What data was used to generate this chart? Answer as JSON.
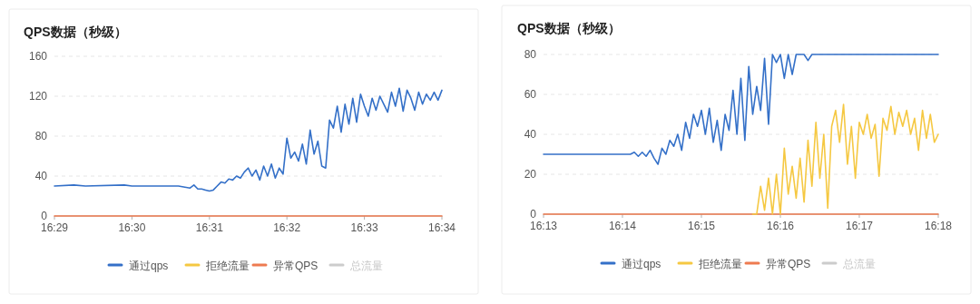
{
  "chart_data": [
    {
      "type": "line",
      "title": "QPS数据（秒级）",
      "xlim": [
        16.48333,
        16.56667
      ],
      "xticks": [
        {
          "value": 16.48333,
          "label": "16:29"
        },
        {
          "value": 16.5,
          "label": "16:30"
        },
        {
          "value": 16.51667,
          "label": "16:31"
        },
        {
          "value": 16.53333,
          "label": "16:32"
        },
        {
          "value": 16.55,
          "label": "16:33"
        },
        {
          "value": 16.56667,
          "label": "16:34"
        }
      ],
      "ylim": [
        0,
        160
      ],
      "yticks": [
        0,
        40,
        80,
        120,
        160
      ],
      "grid": "y",
      "legend": "bottom",
      "marker": "none",
      "line_style": "solid",
      "series": [
        {
          "name": "通过qps",
          "color": "#3470c8",
          "x": [
            16.48333,
            16.4875,
            16.49,
            16.49833,
            16.5,
            16.51,
            16.5125,
            16.51333,
            16.51417,
            16.515,
            16.51583,
            16.51667,
            16.5175,
            16.51833,
            16.51917,
            16.52,
            16.52083,
            16.52167,
            16.5225,
            16.52333,
            16.52417,
            16.525,
            16.52583,
            16.52667,
            16.5275,
            16.52833,
            16.52917,
            16.53,
            16.53083,
            16.53167,
            16.5325,
            16.53333,
            16.53417,
            16.535,
            16.53583,
            16.53667,
            16.5375,
            16.53833,
            16.53917,
            16.54,
            16.54083,
            16.54167,
            16.5425,
            16.54333,
            16.54417,
            16.545,
            16.54583,
            16.54667,
            16.5475,
            16.54833,
            16.54917,
            16.55,
            16.55083,
            16.55167,
            16.5525,
            16.55333,
            16.55417,
            16.555,
            16.55583,
            16.55667,
            16.5575,
            16.55833,
            16.55917,
            16.56,
            16.56083,
            16.56167,
            16.5625,
            16.56333,
            16.56417,
            16.565,
            16.56583,
            16.56667
          ],
          "values": [
            30,
            31,
            30,
            31,
            30,
            30,
            28,
            31,
            27,
            27,
            26,
            25,
            26,
            30,
            34,
            33,
            37,
            36,
            40,
            38,
            44,
            48,
            40,
            46,
            36,
            50,
            40,
            52,
            38,
            48,
            42,
            78,
            58,
            64,
            55,
            72,
            52,
            86,
            62,
            75,
            50,
            48,
            96,
            88,
            110,
            84,
            112,
            92,
            118,
            94,
            122,
            110,
            100,
            118,
            106,
            120,
            112,
            104,
            124,
            110,
            128,
            105,
            126,
            118,
            106,
            124,
            112,
            122,
            116,
            124,
            116,
            126
          ]
        },
        {
          "name": "拒绝流量",
          "color": "#f5c842"
        },
        {
          "name": "异常QPS",
          "color": "#ee7b50",
          "x": [
            16.48333,
            16.56667
          ],
          "values": [
            0,
            0
          ]
        },
        {
          "name": "总流量",
          "color": "#cccccc"
        }
      ]
    },
    {
      "type": "line",
      "title": "QPS数据（秒级）",
      "xlim": [
        16.21667,
        16.3
      ],
      "xticks": [
        {
          "value": 16.21667,
          "label": "16:13"
        },
        {
          "value": 16.23333,
          "label": "16:14"
        },
        {
          "value": 16.25,
          "label": "16:15"
        },
        {
          "value": 16.26667,
          "label": "16:16"
        },
        {
          "value": 16.28333,
          "label": "16:17"
        },
        {
          "value": 16.3,
          "label": "16:18"
        }
      ],
      "ylim": [
        0,
        80
      ],
      "yticks": [
        0,
        20,
        40,
        60,
        80
      ],
      "grid": "y",
      "legend": "bottom",
      "marker": "none",
      "line_style": "solid",
      "series": [
        {
          "name": "通过qps",
          "color": "#3470c8",
          "x": [
            16.21667,
            16.235,
            16.23583,
            16.23667,
            16.2375,
            16.23833,
            16.23917,
            16.24,
            16.24083,
            16.24167,
            16.2425,
            16.24333,
            16.24417,
            16.245,
            16.24583,
            16.24667,
            16.2475,
            16.24833,
            16.24917,
            16.25,
            16.25083,
            16.25167,
            16.2525,
            16.25333,
            16.25417,
            16.255,
            16.25583,
            16.25667,
            16.2575,
            16.25833,
            16.25917,
            16.26,
            16.26083,
            16.26167,
            16.2625,
            16.26333,
            16.26417,
            16.265,
            16.26583,
            16.26667,
            16.2675,
            16.26833,
            16.26917,
            16.27,
            16.27083,
            16.27167,
            16.2725,
            16.27333,
            16.3
          ],
          "values": [
            30,
            30,
            31,
            29,
            31,
            29,
            32,
            28,
            25,
            33,
            30,
            37,
            34,
            40,
            32,
            46,
            38,
            50,
            44,
            52,
            40,
            53,
            36,
            47,
            32,
            50,
            42,
            62,
            40,
            68,
            37,
            74,
            50,
            64,
            52,
            78,
            45,
            80,
            76,
            80,
            68,
            80,
            70,
            80,
            80,
            80,
            77,
            80,
            80
          ]
        },
        {
          "name": "拒绝流量",
          "color": "#f5c842",
          "x": [
            16.26083,
            16.26167,
            16.2625,
            16.26333,
            16.26417,
            16.265,
            16.26583,
            16.26667,
            16.2675,
            16.26833,
            16.26917,
            16.27,
            16.27083,
            16.27167,
            16.2725,
            16.27333,
            16.27417,
            16.275,
            16.27583,
            16.27667,
            16.2775,
            16.27833,
            16.27917,
            16.28,
            16.28083,
            16.28167,
            16.2825,
            16.28333,
            16.28417,
            16.285,
            16.28583,
            16.28667,
            16.2875,
            16.28833,
            16.28917,
            16.29,
            16.29083,
            16.29167,
            16.2925,
            16.29333,
            16.29417,
            16.295,
            16.29583,
            16.29667,
            16.2975,
            16.29833,
            16.29917,
            16.3
          ],
          "values": [
            0,
            0,
            14,
            2,
            18,
            0,
            20,
            0,
            33,
            10,
            24,
            8,
            28,
            6,
            37,
            14,
            46,
            18,
            40,
            3,
            44,
            52,
            36,
            55,
            25,
            44,
            18,
            46,
            40,
            50,
            38,
            45,
            19,
            48,
            42,
            54,
            40,
            51,
            44,
            52,
            40,
            48,
            32,
            52,
            38,
            50,
            36,
            40
          ]
        },
        {
          "name": "异常QPS",
          "color": "#ee7b50",
          "x": [
            16.21667,
            16.3
          ],
          "values": [
            0,
            0
          ]
        },
        {
          "name": "总流量",
          "color": "#cccccc"
        }
      ]
    }
  ]
}
